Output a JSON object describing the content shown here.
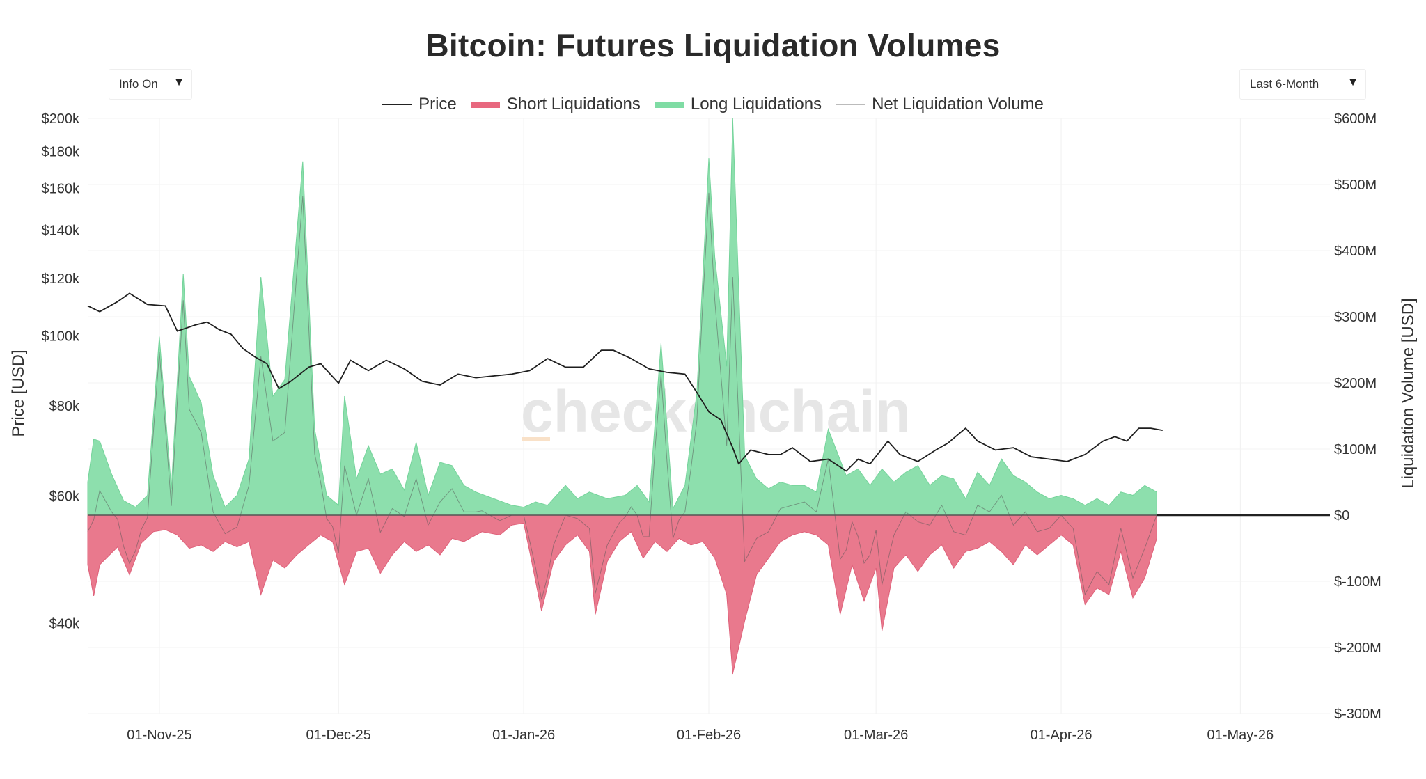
{
  "header": {
    "title": "Bitcoin: Futures Liquidation Volumes"
  },
  "controls": {
    "info_label": "Info On",
    "range_label": "Last 6-Month",
    "dropdown_arrow": "▼"
  },
  "watermark": "checkonchain",
  "legend": [
    {
      "label": "Price",
      "color": "#222222",
      "kind": "line"
    },
    {
      "label": "Short Liquidations",
      "color": "#e8687f",
      "kind": "area"
    },
    {
      "label": "Long Liquidations",
      "color": "#7fdca4",
      "kind": "area"
    },
    {
      "label": "Net Liquidation Volume",
      "color": "#bbbbbb",
      "kind": "thinline"
    }
  ],
  "chart_data": {
    "type": "area",
    "title": "Bitcoin: Futures Liquidation Volumes",
    "xlabel": "",
    "ylabel_left": "Price [USD]",
    "ylabel_right": "Liquidation Volume [USD]",
    "x_range": [
      "2025-10-20",
      "2026-05-16"
    ],
    "x_ticks": [
      "01-Nov-25",
      "01-Dec-25",
      "01-Jan-26",
      "01-Feb-26",
      "01-Mar-26",
      "01-Apr-26",
      "01-May-26"
    ],
    "x_tick_dates": [
      "2025-11-01",
      "2025-12-01",
      "2026-01-01",
      "2026-02-01",
      "2026-03-01",
      "2026-04-01",
      "2026-05-01"
    ],
    "y_left": {
      "scale": "log",
      "range": [
        30000,
        200000
      ],
      "ticks": [
        "$40k",
        "$60k",
        "$80k",
        "$100k",
        "$120k",
        "$140k",
        "$160k",
        "$180k",
        "$200k"
      ],
      "tick_values": [
        40000,
        60000,
        80000,
        100000,
        120000,
        140000,
        160000,
        180000,
        200000
      ]
    },
    "y_right": {
      "scale": "linear",
      "range": [
        -300,
        600
      ],
      "unit": "M USD",
      "ticks": [
        "$-300M",
        "$-200M",
        "$-100M",
        "$0",
        "$100M",
        "$200M",
        "$300M",
        "$400M",
        "$500M",
        "$600M"
      ],
      "tick_values": [
        -300,
        -200,
        -100,
        0,
        100,
        200,
        300,
        400,
        500,
        600
      ]
    },
    "grid": true,
    "legend_position": "top-center",
    "series": [
      {
        "name": "Price",
        "type": "line",
        "axis": "left",
        "points": [
          [
            "2025-10-20",
            110000
          ],
          [
            "2025-10-22",
            108000
          ],
          [
            "2025-10-25",
            111500
          ],
          [
            "2025-10-27",
            114500
          ],
          [
            "2025-10-30",
            110500
          ],
          [
            "2025-11-02",
            110000
          ],
          [
            "2025-11-04",
            101500
          ],
          [
            "2025-11-07",
            103500
          ],
          [
            "2025-11-09",
            104500
          ],
          [
            "2025-11-11",
            102000
          ],
          [
            "2025-11-13",
            100500
          ],
          [
            "2025-11-15",
            96000
          ],
          [
            "2025-11-17",
            93500
          ],
          [
            "2025-11-19",
            91500
          ],
          [
            "2025-11-21",
            84500
          ],
          [
            "2025-11-23",
            86500
          ],
          [
            "2025-11-26",
            90500
          ],
          [
            "2025-11-28",
            91500
          ],
          [
            "2025-12-01",
            86000
          ],
          [
            "2025-12-03",
            92500
          ],
          [
            "2025-12-06",
            89500
          ],
          [
            "2025-12-09",
            92500
          ],
          [
            "2025-12-12",
            90000
          ],
          [
            "2025-12-15",
            86500
          ],
          [
            "2025-12-18",
            85500
          ],
          [
            "2025-12-21",
            88500
          ],
          [
            "2025-12-24",
            87500
          ],
          [
            "2025-12-27",
            88000
          ],
          [
            "2025-12-30",
            88500
          ],
          [
            "2026-01-02",
            89500
          ],
          [
            "2026-01-05",
            93000
          ],
          [
            "2026-01-08",
            90500
          ],
          [
            "2026-01-11",
            90500
          ],
          [
            "2026-01-14",
            95500
          ],
          [
            "2026-01-16",
            95500
          ],
          [
            "2026-01-19",
            93000
          ],
          [
            "2026-01-22",
            90000
          ],
          [
            "2026-01-25",
            89000
          ],
          [
            "2026-01-28",
            88500
          ],
          [
            "2026-01-30",
            83500
          ],
          [
            "2026-02-01",
            78500
          ],
          [
            "2026-02-03",
            76500
          ],
          [
            "2026-02-05",
            70000
          ],
          [
            "2026-02-06",
            66500
          ],
          [
            "2026-02-08",
            69500
          ],
          [
            "2026-02-11",
            68500
          ],
          [
            "2026-02-13",
            68500
          ],
          [
            "2026-02-15",
            70000
          ],
          [
            "2026-02-18",
            67000
          ],
          [
            "2026-02-21",
            67500
          ],
          [
            "2026-02-24",
            65000
          ],
          [
            "2026-02-26",
            67500
          ],
          [
            "2026-02-28",
            66500
          ],
          [
            "2026-03-03",
            71500
          ],
          [
            "2026-03-05",
            68500
          ],
          [
            "2026-03-08",
            67000
          ],
          [
            "2026-03-11",
            69500
          ],
          [
            "2026-03-13",
            71000
          ],
          [
            "2026-03-16",
            74500
          ],
          [
            "2026-03-18",
            71500
          ],
          [
            "2026-03-21",
            69500
          ],
          [
            "2026-03-24",
            70000
          ],
          [
            "2026-03-27",
            68000
          ],
          [
            "2026-03-30",
            67500
          ],
          [
            "2026-04-02",
            67000
          ],
          [
            "2026-04-05",
            68500
          ],
          [
            "2026-04-08",
            71500
          ],
          [
            "2026-04-10",
            72500
          ],
          [
            "2026-04-12",
            71500
          ],
          [
            "2026-04-14",
            74500
          ],
          [
            "2026-04-16",
            74500
          ],
          [
            "2026-04-18",
            74000
          ]
        ]
      },
      {
        "name": "Long Liquidations",
        "type": "area",
        "axis": "right",
        "points": [
          [
            "2025-10-20",
            50
          ],
          [
            "2025-10-21",
            115
          ],
          [
            "2025-10-22",
            112
          ],
          [
            "2025-10-24",
            62
          ],
          [
            "2025-10-26",
            22
          ],
          [
            "2025-10-28",
            12
          ],
          [
            "2025-10-30",
            30
          ],
          [
            "2025-11-01",
            270
          ],
          [
            "2025-11-03",
            40
          ],
          [
            "2025-11-05",
            365
          ],
          [
            "2025-11-06",
            210
          ],
          [
            "2025-11-08",
            170
          ],
          [
            "2025-11-10",
            60
          ],
          [
            "2025-11-12",
            12
          ],
          [
            "2025-11-14",
            30
          ],
          [
            "2025-11-16",
            85
          ],
          [
            "2025-11-18",
            360
          ],
          [
            "2025-11-20",
            180
          ],
          [
            "2025-11-22",
            205
          ],
          [
            "2025-11-25",
            535
          ],
          [
            "2025-11-27",
            130
          ],
          [
            "2025-11-29",
            30
          ],
          [
            "2025-12-01",
            15
          ],
          [
            "2025-12-02",
            180
          ],
          [
            "2025-12-04",
            55
          ],
          [
            "2025-12-06",
            105
          ],
          [
            "2025-12-08",
            62
          ],
          [
            "2025-12-10",
            70
          ],
          [
            "2025-12-12",
            38
          ],
          [
            "2025-12-14",
            110
          ],
          [
            "2025-12-16",
            30
          ],
          [
            "2025-12-18",
            80
          ],
          [
            "2025-12-20",
            75
          ],
          [
            "2025-12-22",
            45
          ],
          [
            "2025-12-24",
            35
          ],
          [
            "2025-12-27",
            25
          ],
          [
            "2025-12-30",
            15
          ],
          [
            "2026-01-01",
            12
          ],
          [
            "2026-01-03",
            20
          ],
          [
            "2026-01-05",
            15
          ],
          [
            "2026-01-08",
            45
          ],
          [
            "2026-01-10",
            25
          ],
          [
            "2026-01-12",
            35
          ],
          [
            "2026-01-15",
            25
          ],
          [
            "2026-01-18",
            30
          ],
          [
            "2026-01-20",
            45
          ],
          [
            "2026-01-22",
            20
          ],
          [
            "2026-01-24",
            260
          ],
          [
            "2026-01-26",
            10
          ],
          [
            "2026-01-28",
            45
          ],
          [
            "2026-01-30",
            185
          ],
          [
            "2026-02-01",
            540
          ],
          [
            "2026-02-02",
            390
          ],
          [
            "2026-02-04",
            225
          ],
          [
            "2026-02-05",
            600
          ],
          [
            "2026-02-07",
            90
          ],
          [
            "2026-02-09",
            55
          ],
          [
            "2026-02-11",
            40
          ],
          [
            "2026-02-13",
            50
          ],
          [
            "2026-02-15",
            45
          ],
          [
            "2026-02-17",
            45
          ],
          [
            "2026-02-19",
            35
          ],
          [
            "2026-02-21",
            130
          ],
          [
            "2026-02-24",
            60
          ],
          [
            "2026-02-26",
            70
          ],
          [
            "2026-02-28",
            45
          ],
          [
            "2026-03-02",
            70
          ],
          [
            "2026-03-04",
            50
          ],
          [
            "2026-03-06",
            65
          ],
          [
            "2026-03-08",
            75
          ],
          [
            "2026-03-10",
            45
          ],
          [
            "2026-03-12",
            60
          ],
          [
            "2026-03-14",
            55
          ],
          [
            "2026-03-16",
            25
          ],
          [
            "2026-03-18",
            65
          ],
          [
            "2026-03-20",
            45
          ],
          [
            "2026-03-22",
            85
          ],
          [
            "2026-03-24",
            60
          ],
          [
            "2026-03-26",
            50
          ],
          [
            "2026-03-28",
            35
          ],
          [
            "2026-03-30",
            25
          ],
          [
            "2026-04-01",
            30
          ],
          [
            "2026-04-03",
            25
          ],
          [
            "2026-04-05",
            15
          ],
          [
            "2026-04-07",
            25
          ],
          [
            "2026-04-09",
            15
          ],
          [
            "2026-04-11",
            35
          ],
          [
            "2026-04-13",
            30
          ],
          [
            "2026-04-15",
            45
          ],
          [
            "2026-04-17",
            35
          ]
        ]
      },
      {
        "name": "Short Liquidations",
        "type": "area",
        "axis": "right",
        "points": [
          [
            "2025-10-20",
            -75
          ],
          [
            "2025-10-21",
            -122
          ],
          [
            "2025-10-22",
            -75
          ],
          [
            "2025-10-25",
            -48
          ],
          [
            "2025-10-27",
            -90
          ],
          [
            "2025-10-29",
            -42
          ],
          [
            "2025-10-31",
            -25
          ],
          [
            "2025-11-02",
            -22
          ],
          [
            "2025-11-04",
            -30
          ],
          [
            "2025-11-06",
            -50
          ],
          [
            "2025-11-08",
            -45
          ],
          [
            "2025-11-10",
            -55
          ],
          [
            "2025-11-12",
            -40
          ],
          [
            "2025-11-14",
            -48
          ],
          [
            "2025-11-16",
            -40
          ],
          [
            "2025-11-18",
            -120
          ],
          [
            "2025-11-20",
            -68
          ],
          [
            "2025-11-22",
            -80
          ],
          [
            "2025-11-24",
            -60
          ],
          [
            "2025-11-26",
            -45
          ],
          [
            "2025-11-28",
            -30
          ],
          [
            "2025-11-30",
            -40
          ],
          [
            "2025-12-02",
            -105
          ],
          [
            "2025-12-04",
            -55
          ],
          [
            "2025-12-06",
            -50
          ],
          [
            "2025-12-08",
            -88
          ],
          [
            "2025-12-10",
            -60
          ],
          [
            "2025-12-12",
            -40
          ],
          [
            "2025-12-14",
            -55
          ],
          [
            "2025-12-16",
            -45
          ],
          [
            "2025-12-18",
            -60
          ],
          [
            "2025-12-20",
            -35
          ],
          [
            "2025-12-22",
            -40
          ],
          [
            "2025-12-25",
            -25
          ],
          [
            "2025-12-28",
            -30
          ],
          [
            "2025-12-30",
            -15
          ],
          [
            "2026-01-01",
            -12
          ],
          [
            "2026-01-02",
            -55
          ],
          [
            "2026-01-04",
            -145
          ],
          [
            "2026-01-06",
            -70
          ],
          [
            "2026-01-08",
            -45
          ],
          [
            "2026-01-10",
            -30
          ],
          [
            "2026-01-12",
            -55
          ],
          [
            "2026-01-13",
            -150
          ],
          [
            "2026-01-15",
            -70
          ],
          [
            "2026-01-17",
            -40
          ],
          [
            "2026-01-19",
            -25
          ],
          [
            "2026-01-21",
            -65
          ],
          [
            "2026-01-23",
            -40
          ],
          [
            "2026-01-25",
            -55
          ],
          [
            "2026-01-27",
            -35
          ],
          [
            "2026-01-29",
            -45
          ],
          [
            "2026-01-31",
            -40
          ],
          [
            "2026-02-02",
            -65
          ],
          [
            "2026-02-04",
            -120
          ],
          [
            "2026-02-05",
            -240
          ],
          [
            "2026-02-07",
            -160
          ],
          [
            "2026-02-09",
            -90
          ],
          [
            "2026-02-11",
            -65
          ],
          [
            "2026-02-13",
            -40
          ],
          [
            "2026-02-15",
            -30
          ],
          [
            "2026-02-17",
            -25
          ],
          [
            "2026-02-19",
            -30
          ],
          [
            "2026-02-21",
            -45
          ],
          [
            "2026-02-23",
            -150
          ],
          [
            "2026-02-25",
            -75
          ],
          [
            "2026-02-27",
            -130
          ],
          [
            "2026-03-01",
            -80
          ],
          [
            "2026-03-02",
            -175
          ],
          [
            "2026-03-04",
            -80
          ],
          [
            "2026-03-06",
            -60
          ],
          [
            "2026-03-08",
            -85
          ],
          [
            "2026-03-10",
            -60
          ],
          [
            "2026-03-12",
            -45
          ],
          [
            "2026-03-14",
            -80
          ],
          [
            "2026-03-16",
            -55
          ],
          [
            "2026-03-18",
            -50
          ],
          [
            "2026-03-20",
            -40
          ],
          [
            "2026-03-22",
            -55
          ],
          [
            "2026-03-24",
            -75
          ],
          [
            "2026-03-26",
            -45
          ],
          [
            "2026-03-28",
            -60
          ],
          [
            "2026-03-30",
            -45
          ],
          [
            "2026-04-01",
            -30
          ],
          [
            "2026-04-03",
            -45
          ],
          [
            "2026-04-05",
            -135
          ],
          [
            "2026-04-07",
            -110
          ],
          [
            "2026-04-09",
            -120
          ],
          [
            "2026-04-11",
            -55
          ],
          [
            "2026-04-13",
            -125
          ],
          [
            "2026-04-15",
            -95
          ],
          [
            "2026-04-17",
            -35
          ]
        ]
      }
    ]
  }
}
